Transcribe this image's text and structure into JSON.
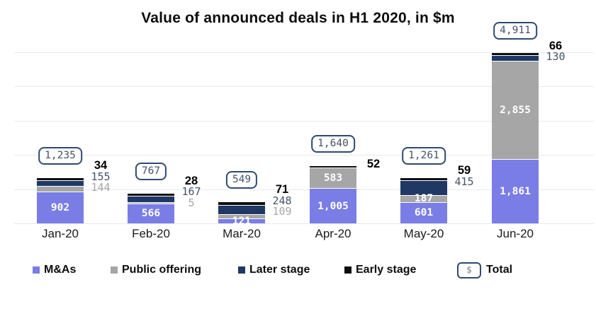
{
  "chart_data": {
    "type": "bar",
    "stacked": true,
    "title": "Value of announced deals in H1 2020, in $m",
    "categories": [
      "Jan-20",
      "Feb-20",
      "Mar-20",
      "Apr-20",
      "May-20",
      "Jun-20"
    ],
    "series": [
      {
        "name": "M&As",
        "color": "#7a7de5",
        "values": [
          902,
          566,
          121,
          1005,
          601,
          1861
        ],
        "label_placement": [
          "in",
          "in",
          "in",
          "in",
          "in",
          "in"
        ]
      },
      {
        "name": "Public offering",
        "color": "#a6a6a6",
        "values": [
          144,
          5,
          109,
          583,
          187,
          2855
        ],
        "label_placement": [
          "out",
          "out",
          "out",
          "in",
          "in",
          "in"
        ]
      },
      {
        "name": "Later stage",
        "color": "#1f3864",
        "values": [
          155,
          167,
          248,
          0,
          415,
          130
        ],
        "label_placement": [
          "out",
          "out",
          "out",
          "none",
          "out",
          "out"
        ]
      },
      {
        "name": "Early stage",
        "color": "#0d0d0d",
        "values": [
          34,
          28,
          71,
          52,
          59,
          66
        ],
        "label_placement": [
          "out",
          "out",
          "out",
          "out",
          "out",
          "out"
        ]
      }
    ],
    "totals": [
      1235,
      767,
      549,
      1640,
      1261,
      4911
    ],
    "total_symbol": "$",
    "legend_labels": [
      "M&As",
      "Public offering",
      "Later stage",
      "Early stage",
      "Total"
    ],
    "ylim": [
      0,
      5000
    ],
    "gridline_step": 1000,
    "grid": true,
    "legend_position": "bottom",
    "inside_label_color": "#ffffff",
    "outside_label_colors": {
      "Public offering": "#a6a6a6",
      "Later stage": "#44546a",
      "Early stage": "#000000"
    }
  }
}
